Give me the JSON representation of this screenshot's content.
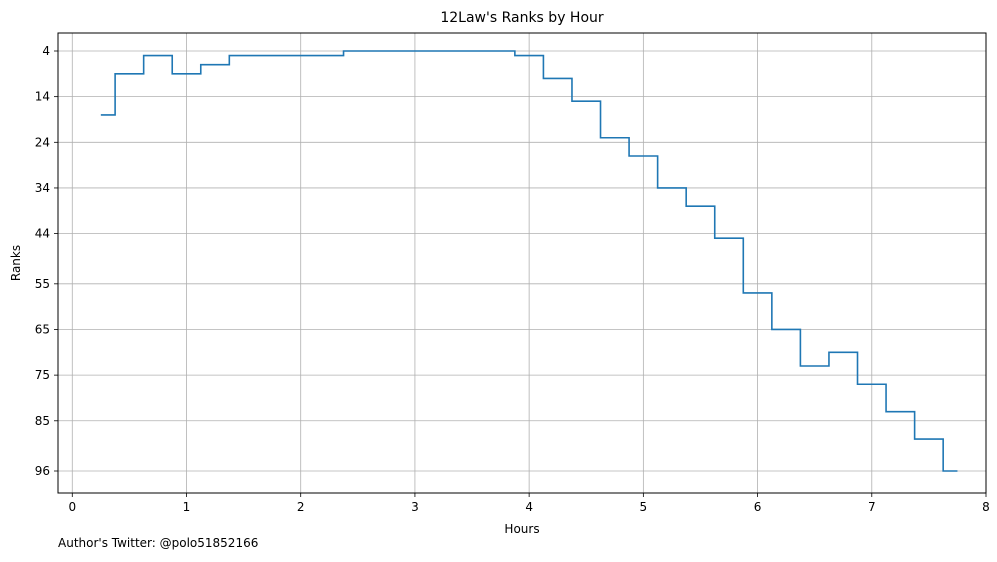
{
  "chart_data": {
    "type": "line",
    "title": "12Law's Ranks by Hour",
    "xlabel": "Hours",
    "ylabel": "Ranks",
    "step": "mid",
    "y_inverted": true,
    "grid": true,
    "xlim": [
      -0.125,
      8.0
    ],
    "ylim": [
      100,
      1
    ],
    "xticks": [
      0,
      1,
      2,
      3,
      4,
      5,
      6,
      7,
      8
    ],
    "yticks": [
      4,
      14,
      24,
      34,
      44,
      55,
      65,
      75,
      85,
      96
    ],
    "series": [
      {
        "color": "#1f77b4",
        "x": [
          0.25,
          0.5,
          0.75,
          1.0,
          1.25,
          1.5,
          1.75,
          2.0,
          2.25,
          2.5,
          2.75,
          3.0,
          3.25,
          3.5,
          3.75,
          4.0,
          4.25,
          4.5,
          4.75,
          5.0,
          5.25,
          5.5,
          5.75,
          6.0,
          6.25,
          6.5,
          6.75,
          7.0,
          7.25,
          7.5,
          7.75
        ],
        "y": [
          18,
          9,
          5,
          9,
          7,
          5,
          5,
          5,
          5,
          4,
          4,
          4,
          4,
          4,
          4,
          5,
          10,
          15,
          23,
          27,
          34,
          38,
          45,
          57,
          65,
          73,
          70,
          77,
          83,
          89,
          96
        ]
      }
    ]
  },
  "footer": "Author's Twitter: @polo51852166"
}
